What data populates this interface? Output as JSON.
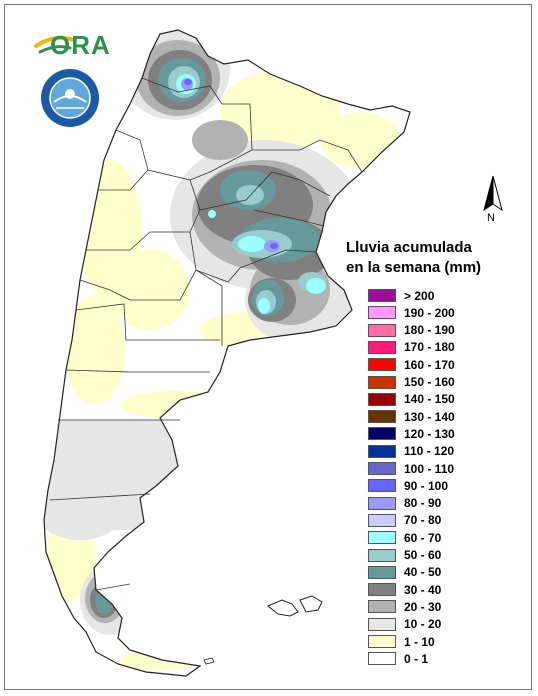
{
  "logo": {
    "text": "ORA"
  },
  "seal": {
    "text": "SERVICIO METEOROLÓGICO NACIONAL · ARGENTINA"
  },
  "north_arrow": {
    "label": "N"
  },
  "legend": {
    "title_line1": "Lluvia acumulada",
    "title_line2": "en la semana (mm)",
    "items": [
      {
        "label": "> 200",
        "color": "#9c0f9c"
      },
      {
        "label": "190 - 200",
        "color": "#ff99ff"
      },
      {
        "label": "180 - 190",
        "color": "#ff6aa8"
      },
      {
        "label": "170 - 180",
        "color": "#ff1a7c"
      },
      {
        "label": "160 - 170",
        "color": "#ff0000"
      },
      {
        "label": "150 - 160",
        "color": "#cc3300"
      },
      {
        "label": "140 - 150",
        "color": "#990000"
      },
      {
        "label": "130 - 140",
        "color": "#663300"
      },
      {
        "label": "120 - 130",
        "color": "#000066"
      },
      {
        "label": "110 - 120",
        "color": "#003399"
      },
      {
        "label": "100 - 110",
        "color": "#6666cc"
      },
      {
        "label": "90 - 100",
        "color": "#6666ff"
      },
      {
        "label": "80 - 90",
        "color": "#9999ff"
      },
      {
        "label": "70 - 80",
        "color": "#ccccff"
      },
      {
        "label": "60 - 70",
        "color": "#99ffff"
      },
      {
        "label": "50 - 60",
        "color": "#99cccc"
      },
      {
        "label": "40 - 50",
        "color": "#669999"
      },
      {
        "label": "30 - 40",
        "color": "#808080"
      },
      {
        "label": "20 - 30",
        "color": "#b2b2b2"
      },
      {
        "label": "10 - 20",
        "color": "#e6e6e6"
      },
      {
        "label": "1 - 10",
        "color": "#ffffcc"
      },
      {
        "label": "0 - 1",
        "color": "#ffffff"
      }
    ]
  }
}
